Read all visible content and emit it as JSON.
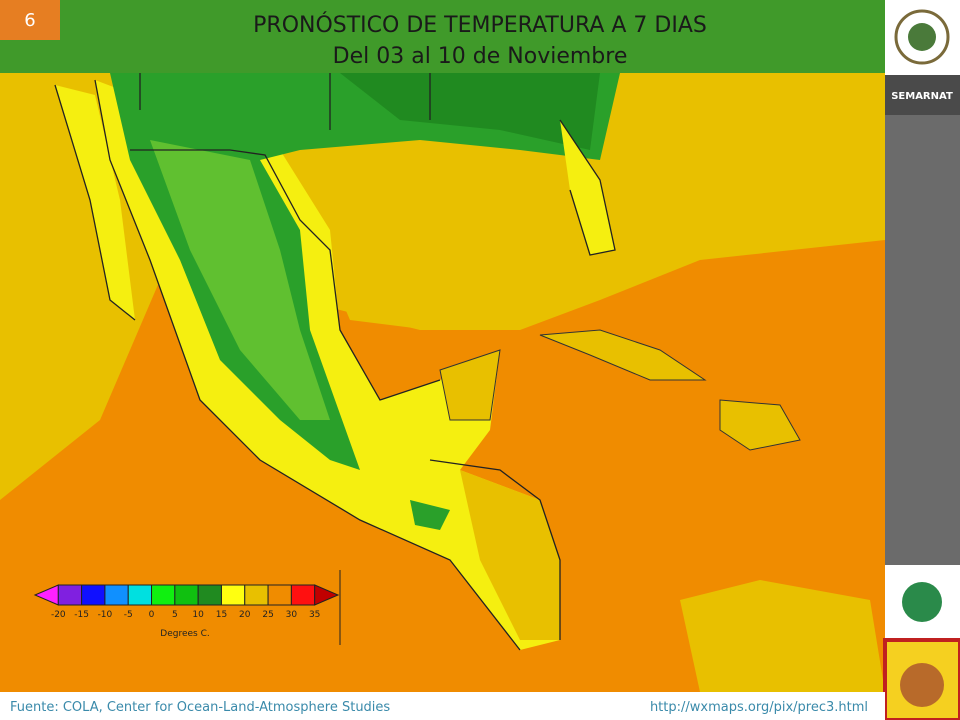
{
  "slide_number": "6",
  "header": {
    "title": "PRONÓSTICO DE TEMPERATURA A 7 DIAS",
    "subtitle": "Del 03 al 10 de Noviembre"
  },
  "sidebar": {
    "brand": "SEMARNAT"
  },
  "legend": {
    "ticks": [
      -20,
      -15,
      -10,
      -5,
      0,
      5,
      10,
      15,
      20,
      25,
      30,
      35
    ],
    "unit": "Degrees C.",
    "colors": [
      "#ff20ff",
      "#8020e0",
      "#1010ff",
      "#1090ff",
      "#00e0e0",
      "#10f010",
      "#10c010",
      "#208a20",
      "#ffff10",
      "#e8c000",
      "#f08c00",
      "#ff1010",
      "#c00000"
    ]
  },
  "footer": {
    "source": "Fuente: COLA, Center  for Ocean-Land-Atmosphere Studies",
    "url": "http://wxmaps.org/pix/prec3.html"
  }
}
